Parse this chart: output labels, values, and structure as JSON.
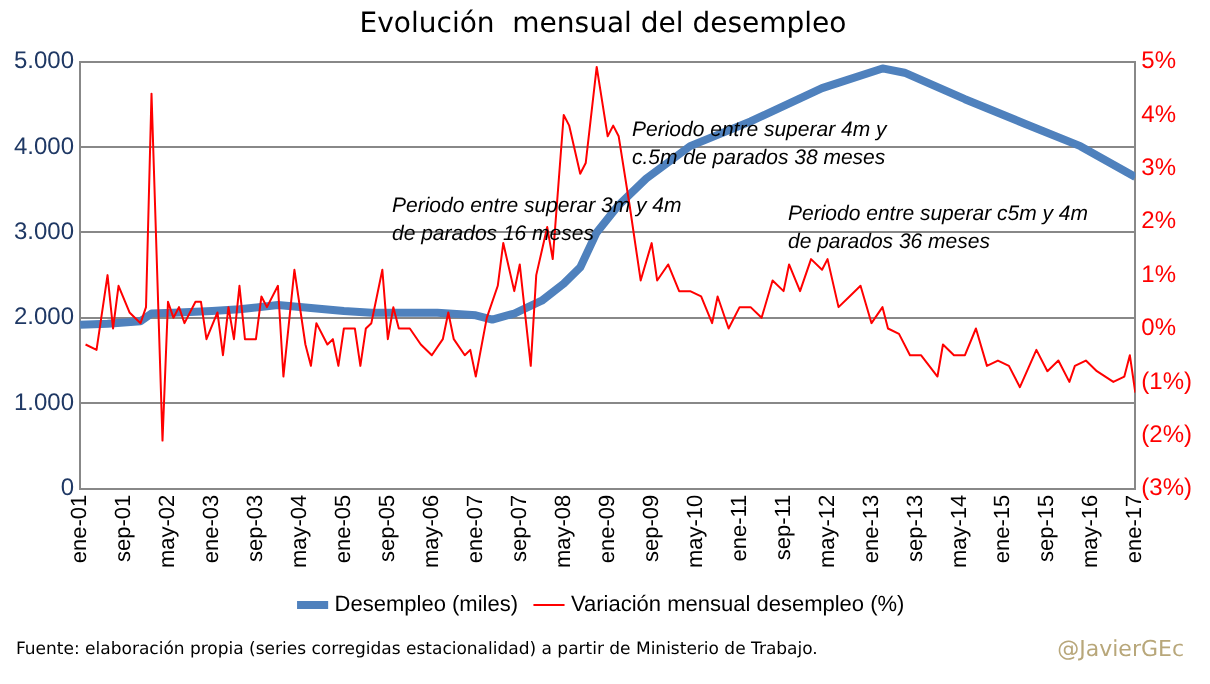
{
  "chart_data": {
    "type": "line",
    "title": "Evolución  mensual del desempleo",
    "legend": "bottom",
    "grid": "y",
    "marker": "none",
    "line_style": "solid",
    "xlim": [
      "2001-01",
      "2017-01"
    ],
    "xticks": [
      {
        "value": "2001-01",
        "label": "ene-01"
      },
      {
        "value": "2001-09",
        "label": "sep-01"
      },
      {
        "value": "2002-05",
        "label": "may-02"
      },
      {
        "value": "2003-01",
        "label": "ene-03"
      },
      {
        "value": "2003-09",
        "label": "sep-03"
      },
      {
        "value": "2004-05",
        "label": "may-04"
      },
      {
        "value": "2005-01",
        "label": "ene-05"
      },
      {
        "value": "2005-09",
        "label": "sep-05"
      },
      {
        "value": "2006-05",
        "label": "may-06"
      },
      {
        "value": "2007-01",
        "label": "ene-07"
      },
      {
        "value": "2007-09",
        "label": "sep-07"
      },
      {
        "value": "2008-05",
        "label": "may-08"
      },
      {
        "value": "2009-01",
        "label": "ene-09"
      },
      {
        "value": "2009-09",
        "label": "sep-09"
      },
      {
        "value": "2010-05",
        "label": "may-10"
      },
      {
        "value": "2011-01",
        "label": "ene-11"
      },
      {
        "value": "2011-09",
        "label": "sep-11"
      },
      {
        "value": "2012-05",
        "label": "may-12"
      },
      {
        "value": "2013-01",
        "label": "ene-13"
      },
      {
        "value": "2013-09",
        "label": "sep-13"
      },
      {
        "value": "2014-05",
        "label": "may-14"
      },
      {
        "value": "2015-01",
        "label": "ene-15"
      },
      {
        "value": "2015-09",
        "label": "sep-15"
      },
      {
        "value": "2016-05",
        "label": "may-16"
      },
      {
        "value": "2017-01",
        "label": "ene-17"
      }
    ],
    "ylim": [
      0,
      5000
    ],
    "yticks": [
      0,
      {
        "value": 1000,
        "label": "1.000"
      },
      {
        "value": 2000,
        "label": "2.000"
      },
      {
        "value": 3000,
        "label": "3.000"
      },
      {
        "value": 4000,
        "label": "4.000"
      },
      {
        "value": 5000,
        "label": "5.000"
      }
    ],
    "y2lim": [
      -3,
      5
    ],
    "y2ticks": [
      {
        "value": -3,
        "label": "(3%)"
      },
      {
        "value": -2,
        "label": "(2%)"
      },
      {
        "value": -1,
        "label": "(1%)"
      },
      {
        "value": 0,
        "label": "0%"
      },
      {
        "value": 1,
        "label": "1%"
      },
      {
        "value": 2,
        "label": "2%"
      },
      {
        "value": 3,
        "label": "3%"
      },
      {
        "value": 4,
        "label": "4%"
      },
      {
        "value": 5,
        "label": "5%"
      }
    ],
    "series": [
      {
        "name": "Desempleo (miles)",
        "color": "#4f81bd",
        "type": "line",
        "x": [
          "2001-01",
          "2001-06",
          "2001-12",
          "2002-02",
          "2002-06",
          "2003-01",
          "2003-06",
          "2004-01",
          "2004-06",
          "2005-01",
          "2005-06",
          "2006-01",
          "2006-06",
          "2007-01",
          "2007-04",
          "2007-08",
          "2007-10",
          "2008-01",
          "2008-05",
          "2008-08",
          "2008-11",
          "2009-03",
          "2009-08",
          "2010-04",
          "2011-03",
          "2012-04",
          "2013-03",
          "2013-07",
          "2014-06",
          "2015-05",
          "2016-03",
          "2017-01"
        ],
        "values": [
          1920,
          1930,
          1960,
          2050,
          2060,
          2080,
          2100,
          2150,
          2120,
          2080,
          2060,
          2060,
          2060,
          2030,
          1980,
          2050,
          2110,
          2200,
          2400,
          2590,
          3000,
          3320,
          3630,
          4010,
          4300,
          4690,
          4920,
          4870,
          4560,
          4270,
          4010,
          3650
        ]
      },
      {
        "name": "Variación mensual desempleo (%)",
        "color": "#ff0000",
        "type": "line",
        "axis": "y2",
        "x": [
          "2001-02",
          "2001-04",
          "2001-06",
          "2001-07",
          "2001-08",
          "2001-10",
          "2001-12",
          "2002-01",
          "2002-02",
          "2002-04",
          "2002-05",
          "2002-06",
          "2002-07",
          "2002-08",
          "2002-10",
          "2002-11",
          "2002-12",
          "2003-02",
          "2003-03",
          "2003-04",
          "2003-05",
          "2003-06",
          "2003-07",
          "2003-09",
          "2003-10",
          "2003-11",
          "2004-01",
          "2004-02",
          "2004-04",
          "2004-06",
          "2004-07",
          "2004-08",
          "2004-10",
          "2004-11",
          "2004-12",
          "2005-01",
          "2005-03",
          "2005-04",
          "2005-05",
          "2005-06",
          "2005-08",
          "2005-09",
          "2005-10",
          "2005-11",
          "2006-01",
          "2006-03",
          "2006-05",
          "2006-07",
          "2006-08",
          "2006-09",
          "2006-11",
          "2006-12",
          "2007-01",
          "2007-03",
          "2007-05",
          "2007-06",
          "2007-08",
          "2007-09",
          "2007-11",
          "2007-12",
          "2008-02",
          "2008-03",
          "2008-05",
          "2008-06",
          "2008-08",
          "2008-09",
          "2008-11",
          "2009-01",
          "2009-02",
          "2009-03",
          "2009-05",
          "2009-07",
          "2009-09",
          "2009-10",
          "2009-12",
          "2010-02",
          "2010-04",
          "2010-06",
          "2010-08",
          "2010-09",
          "2010-11",
          "2011-01",
          "2011-03",
          "2011-05",
          "2011-07",
          "2011-09",
          "2011-10",
          "2011-12",
          "2012-02",
          "2012-04",
          "2012-05",
          "2012-07",
          "2012-09",
          "2012-11",
          "2013-01",
          "2013-03",
          "2013-04",
          "2013-06",
          "2013-08",
          "2013-10",
          "2014-01",
          "2014-02",
          "2014-04",
          "2014-06",
          "2014-08",
          "2014-10",
          "2014-12",
          "2015-02",
          "2015-04",
          "2015-07",
          "2015-09",
          "2015-11",
          "2016-01",
          "2016-02",
          "2016-04",
          "2016-06",
          "2016-09",
          "2016-11",
          "2016-12",
          "2017-01"
        ],
        "values": [
          -0.3,
          -0.4,
          1.0,
          0.0,
          0.8,
          0.3,
          0.1,
          0.4,
          4.4,
          -2.1,
          0.5,
          0.2,
          0.4,
          0.1,
          0.5,
          0.5,
          -0.2,
          0.3,
          -0.5,
          0.4,
          -0.2,
          0.8,
          -0.2,
          -0.2,
          0.6,
          0.4,
          0.8,
          -0.9,
          1.1,
          -0.3,
          -0.7,
          0.1,
          -0.3,
          -0.2,
          -0.7,
          0.0,
          0.0,
          -0.7,
          0.0,
          0.1,
          1.1,
          -0.2,
          0.4,
          0.0,
          0.0,
          -0.3,
          -0.5,
          -0.2,
          0.3,
          -0.2,
          -0.5,
          -0.4,
          -0.9,
          0.2,
          0.8,
          1.6,
          0.7,
          1.2,
          -0.7,
          1.0,
          1.9,
          1.3,
          4.0,
          3.8,
          2.9,
          3.1,
          4.9,
          3.6,
          3.8,
          3.6,
          2.3,
          0.9,
          1.6,
          0.9,
          1.2,
          0.7,
          0.7,
          0.6,
          0.1,
          0.6,
          0.0,
          0.4,
          0.4,
          0.2,
          0.9,
          0.7,
          1.2,
          0.7,
          1.3,
          1.1,
          1.3,
          0.4,
          0.6,
          0.8,
          0.1,
          0.4,
          0.0,
          -0.1,
          -0.5,
          -0.5,
          -0.9,
          -0.3,
          -0.5,
          -0.5,
          0.0,
          -0.7,
          -0.6,
          -0.7,
          -1.1,
          -0.4,
          -0.8,
          -0.6,
          -1.0,
          -0.7,
          -0.6,
          -0.8,
          -1.0,
          -0.9,
          -0.5,
          -1.2
        ]
      }
    ],
    "annotations": [
      "Periodo entre superar 3m y 4m de parados 16 meses",
      "Periodo entre superar 4m y c.5m de parados 38 meses",
      "Periodo entre superar c5m y 4m de parados 36 meses",
      "Fuente:  elaboración propia  (series corregidas estacionalidad)  a partir de Ministerio de Trabajo.",
      "@JavierGEc"
    ]
  }
}
